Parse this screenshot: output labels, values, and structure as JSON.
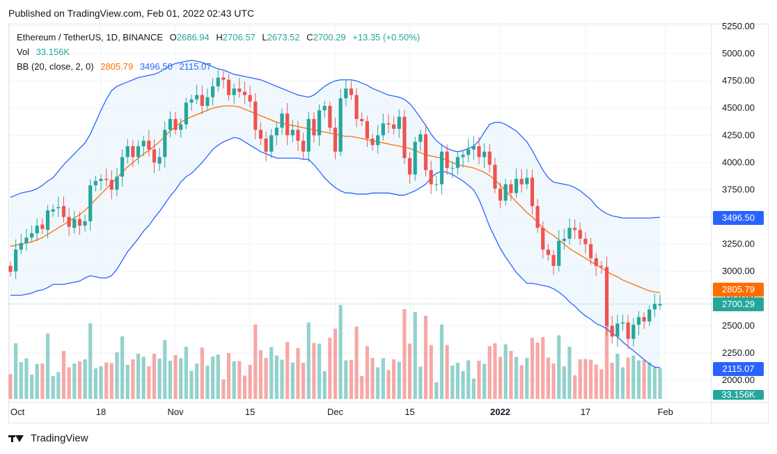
{
  "header": {
    "published": "Published on TradingView.com, Feb 01, 2022 02:43 UTC"
  },
  "legend": {
    "symbol": "Ethereum / TetherUS, 1D, BINANCE",
    "o_label": "O",
    "o_value": "2686.94",
    "h_label": "H",
    "h_value": "2706.57",
    "l_label": "L",
    "l_value": "2673.52",
    "c_label": "C",
    "c_value": "2700.29",
    "change": "+13.35 (+0.50%)",
    "vol_label": "Vol",
    "vol_value": "33.156K",
    "bb_label": "BB (20, close, 2, 0)",
    "bb_mid": "2805.79",
    "bb_upper": "3496.50",
    "bb_lower": "2115.07"
  },
  "footer": {
    "brand": "TradingView"
  },
  "colors": {
    "up": "#26a69a",
    "down": "#ef5350",
    "bb_mid": "#ff6d00",
    "bb_band": "#2962ff",
    "bb_fill": "#e3f2fd"
  },
  "chart_data": {
    "type": "candlestick",
    "title": "Ethereum / TetherUS, 1D, BINANCE",
    "ylim": [
      1850,
      5300
    ],
    "y_ticks": [
      2000,
      2250,
      2500,
      2750,
      3000,
      3250,
      3500,
      3750,
      4000,
      4250,
      4500,
      4750,
      5000,
      5250
    ],
    "y_tick_labels": [
      "2000.00",
      "2250.00",
      "2500.00",
      "2750.00",
      "3000.00",
      "3250.00",
      "3500.00",
      "3750.00",
      "4000.00",
      "4250.00",
      "4500.00",
      "4750.00",
      "5000.00",
      "5250.00"
    ],
    "x_tick_labels": [
      {
        "index": 0,
        "label": "Oct"
      },
      {
        "index": 17,
        "label": "18"
      },
      {
        "index": 31,
        "label": "Nov"
      },
      {
        "index": 45,
        "label": "15"
      },
      {
        "index": 61,
        "label": "Dec"
      },
      {
        "index": 75,
        "label": "15"
      },
      {
        "index": 92,
        "label": "2022"
      },
      {
        "index": 108,
        "label": "17"
      },
      {
        "index": 123,
        "label": "Feb"
      }
    ],
    "close": [
      2995,
      3200,
      3260,
      3310,
      3350,
      3420,
      3390,
      3560,
      3570,
      3590,
      3500,
      3410,
      3480,
      3420,
      3460,
      3790,
      3830,
      3850,
      3840,
      3750,
      3870,
      4050,
      4150,
      4050,
      4150,
      4200,
      4120,
      4000,
      4050,
      4300,
      4400,
      4300,
      4350,
      4550,
      4580,
      4620,
      4520,
      4600,
      4700,
      4780,
      4760,
      4620,
      4680,
      4650,
      4620,
      4560,
      4300,
      4220,
      4100,
      4250,
      4320,
      4450,
      4250,
      4300,
      4200,
      4100,
      4400,
      4250,
      4480,
      4520,
      4320,
      4100,
      4590,
      4680,
      4620,
      4400,
      4380,
      4220,
      4160,
      4250,
      4360,
      4350,
      4310,
      4420,
      4040,
      3890,
      4190,
      4260,
      3930,
      3800,
      3800,
      4100,
      3950,
      3950,
      4050,
      4070,
      4120,
      4150,
      4050,
      4100,
      3980,
      3760,
      3650,
      3800,
      3720,
      3850,
      3800,
      3860,
      3600,
      3400,
      3200,
      3150,
      3050,
      3280,
      3300,
      3400,
      3380,
      3300,
      3250,
      3120,
      3050,
      3040,
      2500,
      2400,
      2520,
      2530,
      2380,
      2510,
      2580,
      2540,
      2650,
      2700,
      2700
    ],
    "open": [
      3050,
      3000,
      3200,
      3260,
      3310,
      3350,
      3430,
      3380,
      3550,
      3580,
      3600,
      3500,
      3400,
      3480,
      3420,
      3460,
      3790,
      3830,
      3850,
      3840,
      3750,
      3870,
      4050,
      4150,
      4050,
      4150,
      4200,
      4120,
      3990,
      4050,
      4300,
      4400,
      4300,
      4350,
      4550,
      4580,
      4620,
      4520,
      4600,
      4700,
      4780,
      4760,
      4620,
      4680,
      4650,
      4620,
      4560,
      4300,
      4220,
      4100,
      4250,
      4320,
      4450,
      4250,
      4300,
      4200,
      4100,
      4400,
      4250,
      4480,
      4520,
      4320,
      4100,
      4590,
      4680,
      4620,
      4400,
      4380,
      4220,
      4160,
      4250,
      4360,
      4350,
      4310,
      4420,
      4040,
      3890,
      4190,
      4260,
      3930,
      3800,
      3800,
      4100,
      3950,
      3950,
      4050,
      4070,
      4120,
      4150,
      4050,
      4100,
      3980,
      3760,
      3650,
      3800,
      3720,
      3850,
      3800,
      3860,
      3600,
      3400,
      3200,
      3150,
      3050,
      3280,
      3300,
      3400,
      3380,
      3300,
      3250,
      3120,
      3050,
      3040,
      2500,
      2400,
      2520,
      2530,
      2380,
      2510,
      2580,
      2540,
      2650,
      2687
    ],
    "bb_upper": [
      3680,
      3700,
      3720,
      3730,
      3740,
      3760,
      3790,
      3830,
      3860,
      3920,
      3980,
      4030,
      4080,
      4130,
      4180,
      4260,
      4370,
      4480,
      4580,
      4660,
      4700,
      4720,
      4740,
      4760,
      4780,
      4790,
      4800,
      4810,
      4830,
      4860,
      4890,
      4910,
      4920,
      4930,
      4940,
      4930,
      4920,
      4900,
      4880,
      4860,
      4850,
      4830,
      4810,
      4800,
      4790,
      4780,
      4770,
      4760,
      4740,
      4720,
      4700,
      4680,
      4660,
      4640,
      4620,
      4610,
      4600,
      4620,
      4660,
      4700,
      4730,
      4750,
      4760,
      4760,
      4760,
      4750,
      4730,
      4710,
      4680,
      4660,
      4640,
      4620,
      4610,
      4600,
      4580,
      4540,
      4480,
      4410,
      4340,
      4260,
      4200,
      4160,
      4130,
      4110,
      4100,
      4110,
      4130,
      4150,
      4200,
      4280,
      4350,
      4370,
      4370,
      4350,
      4320,
      4290,
      4240,
      4190,
      4110,
      4020,
      3930,
      3860,
      3820,
      3810,
      3800,
      3790,
      3770,
      3740,
      3700,
      3660,
      3600,
      3560,
      3530,
      3510,
      3500,
      3490,
      3490,
      3490,
      3490,
      3490,
      3490,
      3494,
      3496.5
    ],
    "bb_mid": [
      3230,
      3240,
      3250,
      3260,
      3270,
      3290,
      3310,
      3340,
      3370,
      3400,
      3430,
      3460,
      3490,
      3520,
      3560,
      3610,
      3660,
      3710,
      3760,
      3810,
      3860,
      3910,
      3960,
      4000,
      4040,
      4080,
      4110,
      4150,
      4190,
      4240,
      4290,
      4330,
      4370,
      4400,
      4420,
      4440,
      4460,
      4480,
      4500,
      4510,
      4520,
      4520,
      4520,
      4510,
      4490,
      4470,
      4450,
      4430,
      4410,
      4390,
      4370,
      4360,
      4350,
      4340,
      4330,
      4320,
      4310,
      4300,
      4290,
      4280,
      4270,
      4260,
      4250,
      4240,
      4240,
      4230,
      4220,
      4210,
      4200,
      4190,
      4180,
      4170,
      4160,
      4150,
      4140,
      4130,
      4110,
      4090,
      4070,
      4060,
      4050,
      4040,
      4020,
      4000,
      3980,
      3970,
      3960,
      3950,
      3930,
      3910,
      3880,
      3840,
      3790,
      3740,
      3690,
      3640,
      3590,
      3540,
      3500,
      3450,
      3400,
      3360,
      3330,
      3290,
      3250,
      3210,
      3180,
      3150,
      3120,
      3090,
      3060,
      3030,
      3000,
      2970,
      2950,
      2920,
      2900,
      2880,
      2860,
      2840,
      2820,
      2810,
      2805.8
    ],
    "bb_lower": [
      2780,
      2780,
      2780,
      2790,
      2800,
      2820,
      2830,
      2850,
      2880,
      2880,
      2880,
      2890,
      2900,
      2910,
      2940,
      2960,
      2950,
      2940,
      2940,
      2960,
      3020,
      3100,
      3180,
      3240,
      3300,
      3370,
      3420,
      3490,
      3550,
      3620,
      3690,
      3750,
      3820,
      3870,
      3900,
      3950,
      4000,
      4060,
      4120,
      4160,
      4190,
      4210,
      4230,
      4220,
      4190,
      4160,
      4130,
      4100,
      4080,
      4060,
      4040,
      4040,
      4040,
      4040,
      4040,
      4030,
      4030,
      3980,
      3920,
      3860,
      3810,
      3770,
      3740,
      3720,
      3720,
      3710,
      3710,
      3710,
      3720,
      3720,
      3720,
      3720,
      3710,
      3700,
      3700,
      3720,
      3740,
      3770,
      3800,
      3860,
      3900,
      3920,
      3910,
      3890,
      3860,
      3830,
      3790,
      3750,
      3660,
      3540,
      3410,
      3310,
      3210,
      3130,
      3060,
      2990,
      2940,
      2890,
      2890,
      2880,
      2870,
      2860,
      2840,
      2810,
      2770,
      2720,
      2680,
      2630,
      2590,
      2560,
      2520,
      2500,
      2470,
      2430,
      2400,
      2350,
      2310,
      2270,
      2230,
      2190,
      2150,
      2120,
      2115
    ]
  }
}
